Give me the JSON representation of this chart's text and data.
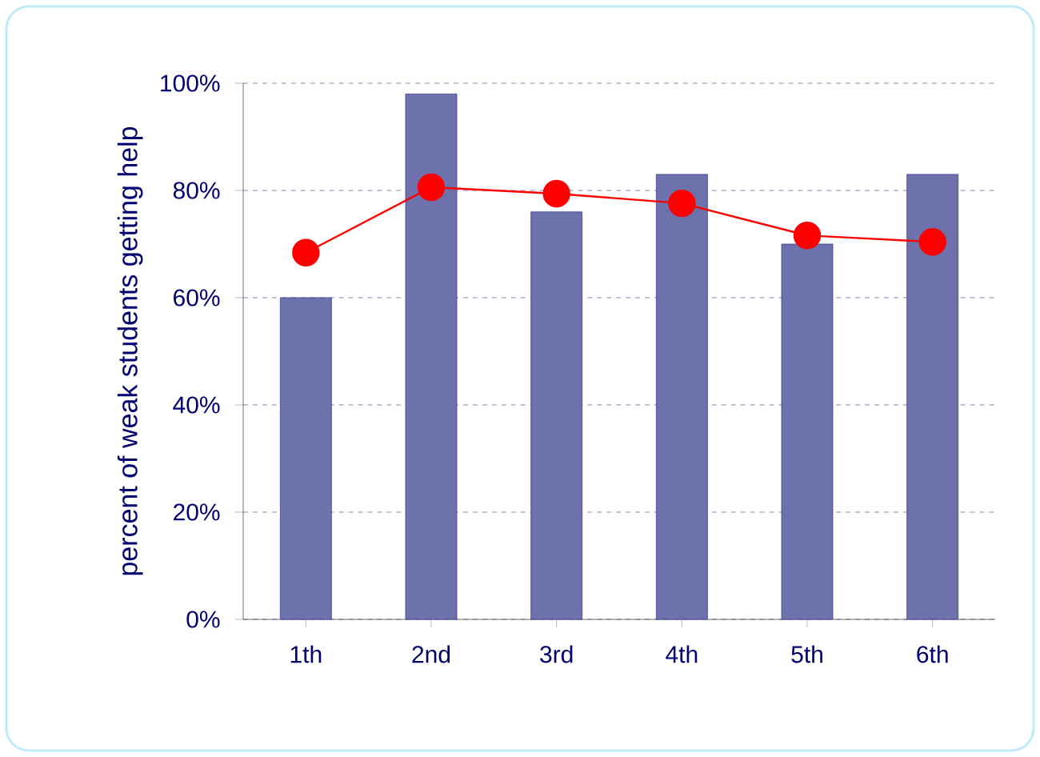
{
  "chart_data": {
    "type": "bar",
    "ylabel": "percent of weak students getting help",
    "categories": [
      "1th",
      "2nd",
      "3rd",
      "4th",
      "5th",
      "6th"
    ],
    "series": [
      {
        "color": "#3c4290",
        "values": [
          60,
          98,
          76,
          83,
          70,
          83
        ]
      },
      {
        "type": "line",
        "color": "#ff0000",
        "marker": "circle",
        "values": [
          68.4,
          80.6,
          79.4,
          77.6,
          71.6,
          70.4
        ]
      }
    ],
    "ylim": [
      0,
      100
    ],
    "yticks": [
      {
        "value": 0,
        "label": "0%"
      },
      {
        "value": 20,
        "label": "20%"
      },
      {
        "value": 40,
        "label": "40%"
      },
      {
        "value": 60,
        "label": "60%"
      },
      {
        "value": 80,
        "label": "80%"
      },
      {
        "value": 100,
        "label": "100%"
      }
    ],
    "grid": "y"
  }
}
